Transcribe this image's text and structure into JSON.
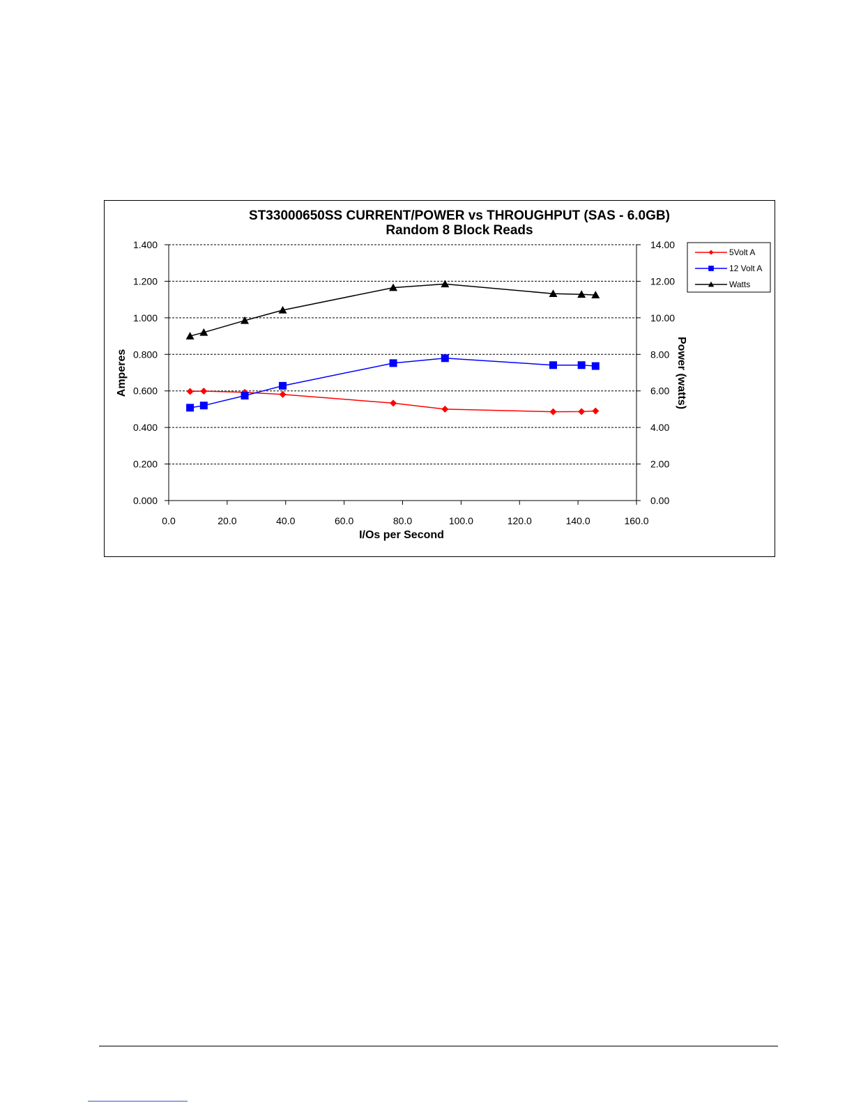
{
  "chart_data": {
    "type": "line",
    "title": "ST33000650SS CURRENT/POWER vs  THROUGHPUT (SAS - 6.0GB)",
    "subtitle": "Random 8 Block Reads",
    "xlabel": "I/Os per  Second",
    "ylabel": "Amperes",
    "y2label": "Power (watts)",
    "xlim": [
      0,
      160
    ],
    "ylim": [
      0,
      1.4
    ],
    "y2lim": [
      0,
      14
    ],
    "x_ticks": [
      "0.0",
      "20.0",
      "40.0",
      "60.0",
      "80.0",
      "100.0",
      "120.0",
      "140.0",
      "160.0"
    ],
    "y_ticks": [
      "0.000",
      "0.200",
      "0.400",
      "0.600",
      "0.800",
      "1.000",
      "1.200",
      "1.400"
    ],
    "y2_ticks": [
      "0.00",
      "2.00",
      "4.00",
      "6.00",
      "8.00",
      "10.00",
      "12.00",
      "14.00"
    ],
    "grid": "horizontal dashed",
    "legend_position": "top-right",
    "series": [
      {
        "name": "5Volt A",
        "axis": "left",
        "color": "#ff0000",
        "marker": "diamond",
        "points": [
          [
            7.3,
            0.597
          ],
          [
            12.0,
            0.599
          ],
          [
            26.0,
            0.592
          ],
          [
            39.0,
            0.581
          ],
          [
            76.8,
            0.533
          ],
          [
            94.5,
            0.5
          ],
          [
            131.5,
            0.486
          ],
          [
            141.2,
            0.487
          ],
          [
            146.0,
            0.49
          ]
        ]
      },
      {
        "name": "12 Volt A",
        "axis": "left",
        "color": "#0000ff",
        "marker": "square",
        "points": [
          [
            7.3,
            0.508
          ],
          [
            12.0,
            0.52
          ],
          [
            26.0,
            0.574
          ],
          [
            39.0,
            0.628
          ],
          [
            76.8,
            0.752
          ],
          [
            94.5,
            0.779
          ],
          [
            131.5,
            0.741
          ],
          [
            141.2,
            0.741
          ],
          [
            146.0,
            0.736
          ]
        ]
      },
      {
        "name": "Watts",
        "axis": "right",
        "color": "#000000",
        "marker": "triangle",
        "points": [
          [
            7.3,
            9.0
          ],
          [
            12.0,
            9.2
          ],
          [
            26.0,
            9.85
          ],
          [
            39.0,
            10.42
          ],
          [
            76.8,
            11.65
          ],
          [
            94.5,
            11.85
          ],
          [
            131.5,
            11.32
          ],
          [
            141.2,
            11.28
          ],
          [
            146.0,
            11.25
          ]
        ]
      }
    ]
  }
}
